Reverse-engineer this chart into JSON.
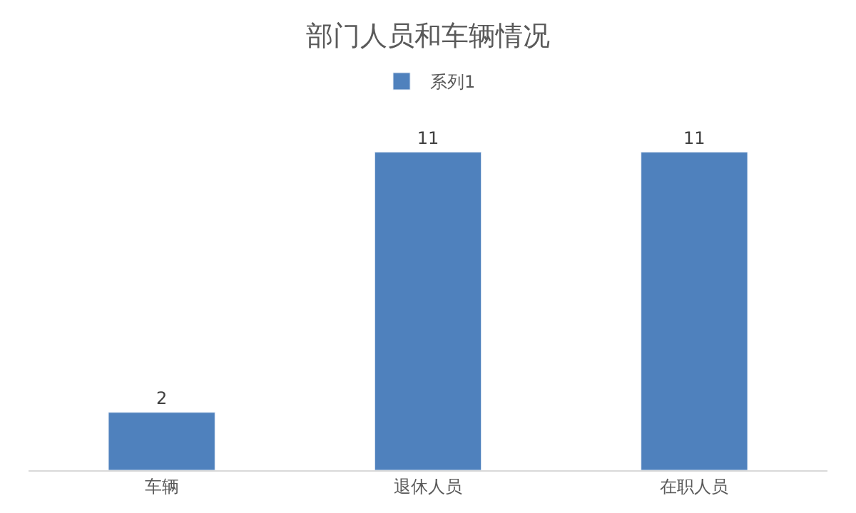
{
  "chart_data": {
    "type": "bar",
    "title": "部门人员和车辆情况",
    "categories": [
      "车辆",
      "退休人员",
      "在职人员"
    ],
    "series": [
      {
        "name": "系列1",
        "color": "#4f81bd",
        "values": [
          2,
          11,
          11
        ]
      }
    ],
    "data_labels": true,
    "legend": "top"
  }
}
